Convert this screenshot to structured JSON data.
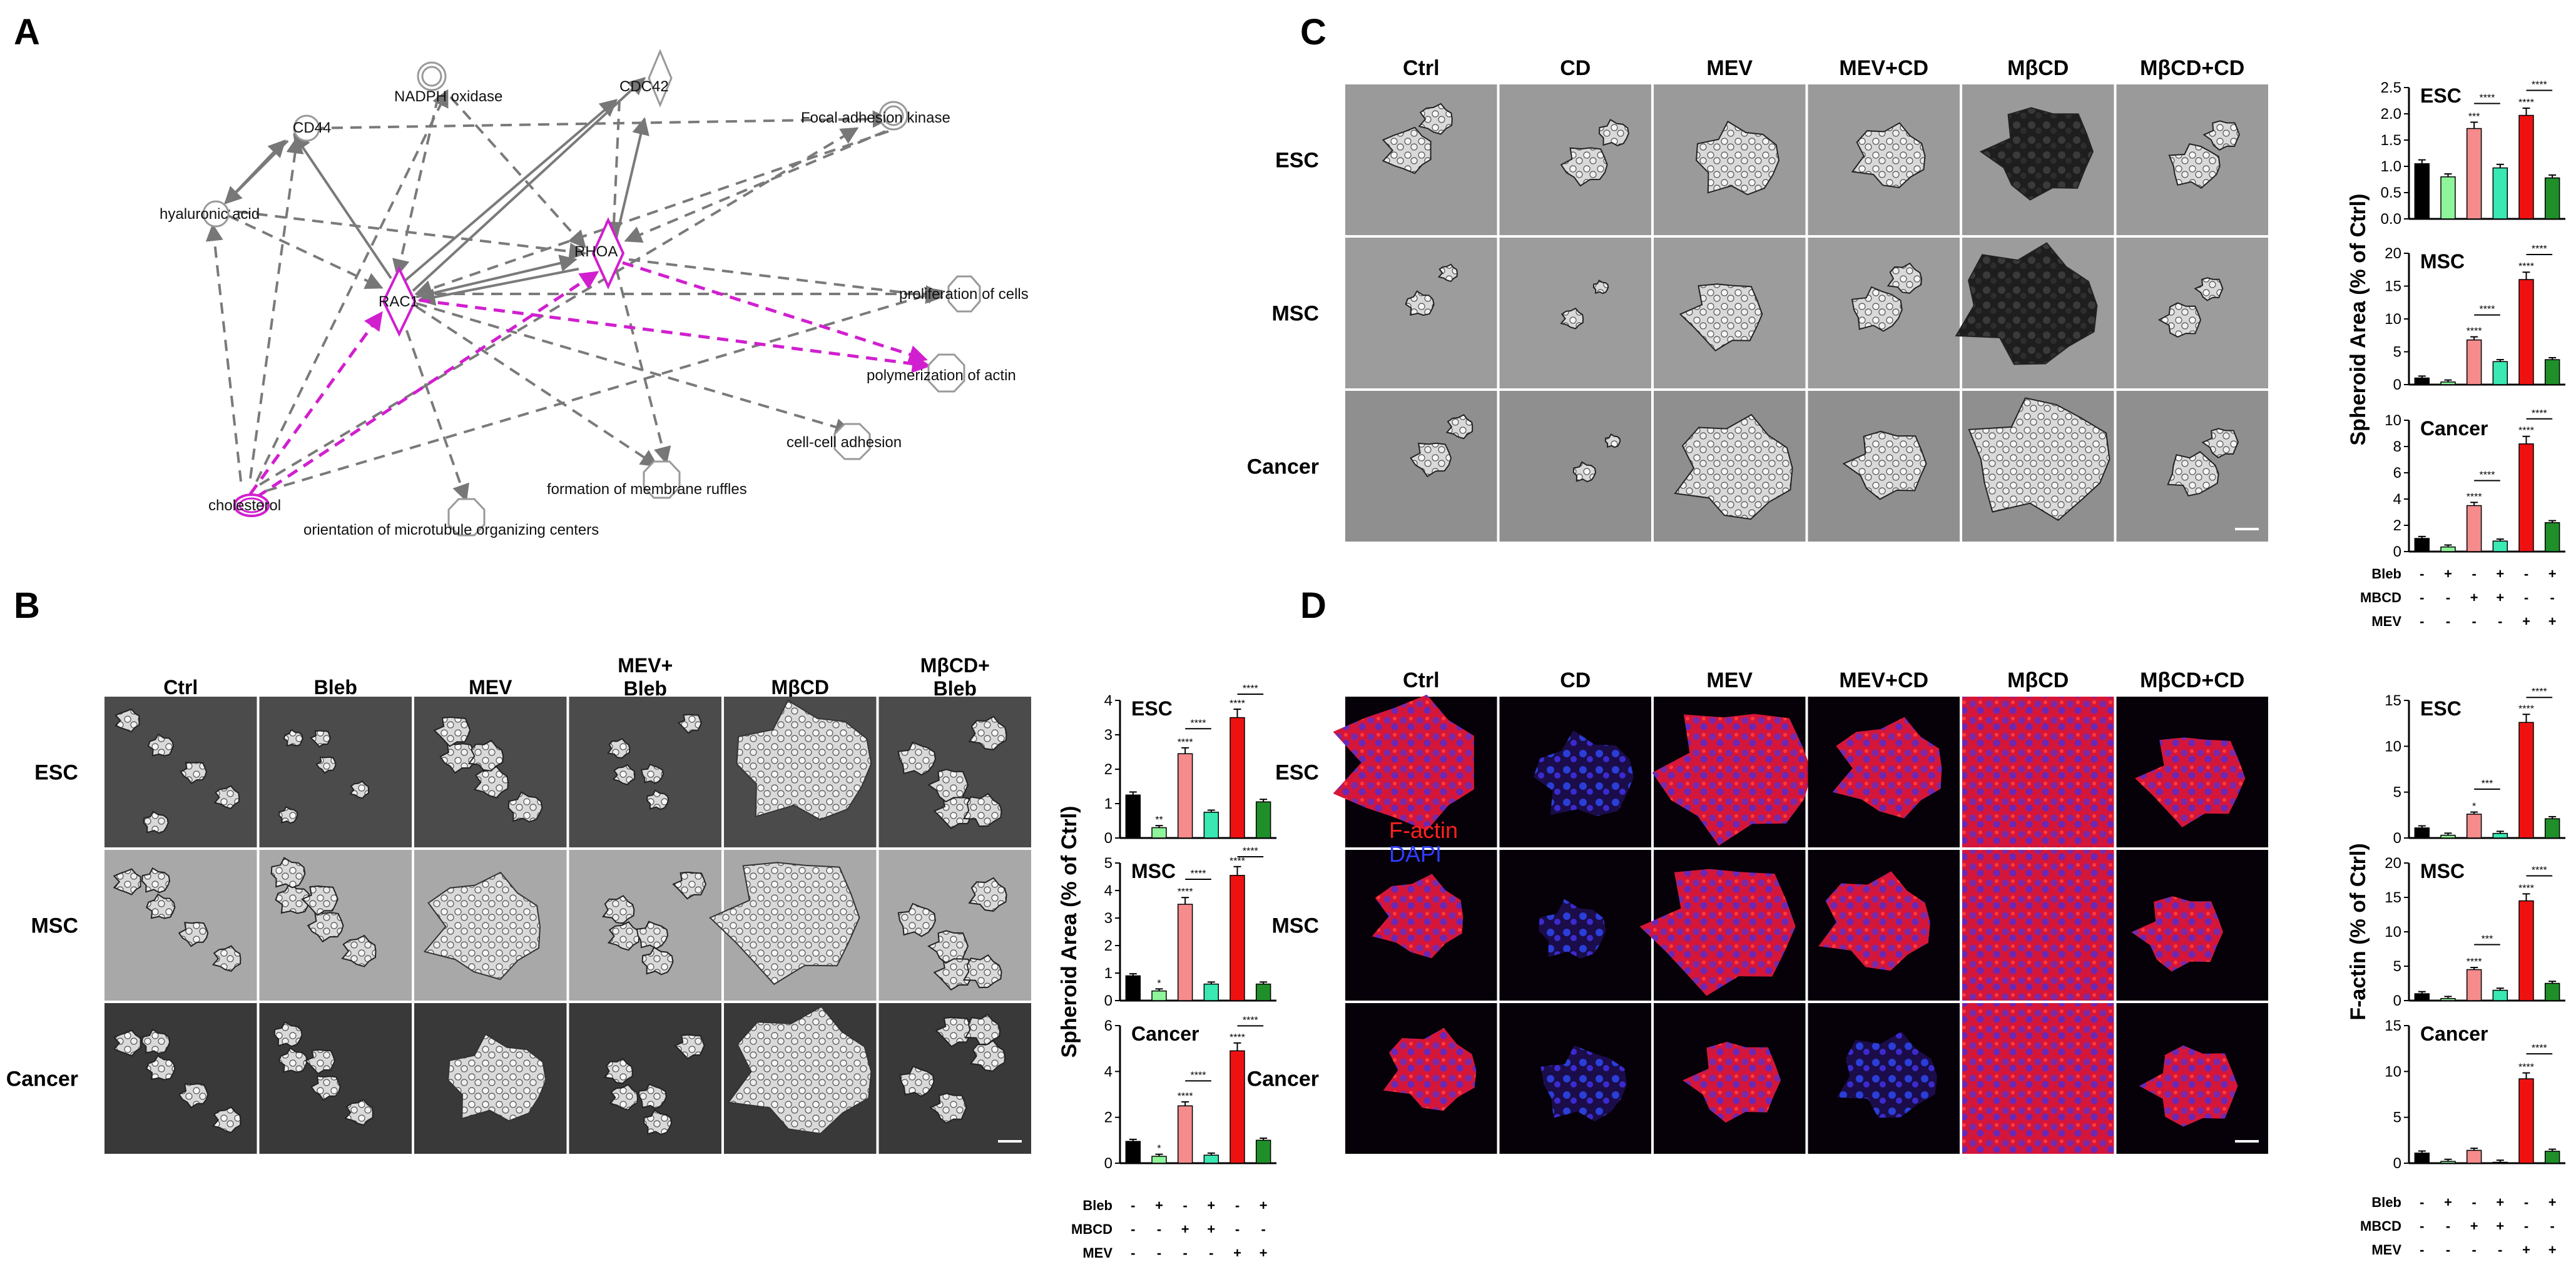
{
  "panels": {
    "A": {
      "letter": "A",
      "nodes": {
        "hyaluronic_acid": "hyaluronic acid",
        "cd44": "CD44",
        "nadph": "NADPH oxidase",
        "cdc42": "CDC42",
        "fak": "Focal adhesion kinase",
        "rac1": "RAC1",
        "rhoa": "RHOA",
        "prolif": "proliferation of cells",
        "polym": "polymerization of actin",
        "cellcell": "cell-cell adhesion",
        "ruffles": "formation of membrane ruffles",
        "mtoc": "orientation of microtubule organizing centers",
        "cholesterol": "cholesterol"
      }
    },
    "B": {
      "letter": "B",
      "columns": [
        "Ctrl",
        "Bleb",
        "MEV",
        "MEV+\nBleb",
        "MβCD",
        "MβCD+\nBleb"
      ],
      "column_lines": [
        [
          "Ctrl"
        ],
        [
          "Bleb"
        ],
        [
          "MEV"
        ],
        [
          "MEV+",
          "Bleb"
        ],
        [
          "MβCD"
        ],
        [
          "MβCD+",
          "Bleb"
        ]
      ],
      "rows": [
        "ESC",
        "MSC",
        "Cancer"
      ],
      "ylabel": "Spheroid Area (% of Ctrl)"
    },
    "C": {
      "letter": "C",
      "columns": [
        "Ctrl",
        "CD",
        "MEV",
        "MEV+CD",
        "MβCD",
        "MβCD+CD"
      ],
      "rows": [
        "ESC",
        "MSC",
        "Cancer"
      ],
      "ylabel": "Spheroid Area (% of Ctrl)"
    },
    "D": {
      "letter": "D",
      "columns": [
        "Ctrl",
        "CD",
        "MEV",
        "MEV+CD",
        "MβCD",
        "MβCD+CD"
      ],
      "rows": [
        "ESC",
        "MSC",
        "Cancer"
      ],
      "legend": [
        "F-actin",
        "DAPI"
      ],
      "ylabel": "F-actin (% of Ctrl)"
    }
  },
  "treatment_table": {
    "rows": [
      {
        "name": "Bleb",
        "marks": [
          "-",
          "+",
          "-",
          "+",
          "-",
          "+"
        ]
      },
      {
        "name": "MBCD",
        "marks": [
          "-",
          "-",
          "+",
          "+",
          "-",
          "-"
        ]
      },
      {
        "name": "MEV",
        "marks": [
          "-",
          "-",
          "-",
          "-",
          "+",
          "+"
        ]
      }
    ]
  },
  "colors": {
    "bars": [
      "#000000",
      "#8ef59a",
      "#f58b8b",
      "#39e8b2",
      "#ef1111",
      "#1f8f2a"
    ],
    "pink": "#d11fcf",
    "gray_edge": "#888888"
  },
  "chart_data": [
    {
      "type": "bar",
      "panel": "B",
      "ylabel": "Spheroid Area (% of Ctrl)",
      "subplots": [
        {
          "title": "ESC",
          "ylim": [
            0,
            4
          ],
          "yticks": [
            0,
            1,
            2,
            3,
            4
          ],
          "values": [
            1.25,
            0.3,
            2.45,
            0.75,
            3.5,
            1.05
          ],
          "stars": [
            "",
            "**",
            "****",
            "",
            "****",
            ""
          ],
          "brackets": [
            {
              "from": 2,
              "to": 3,
              "label": "****"
            },
            {
              "from": 4,
              "to": 5,
              "label": "****"
            }
          ]
        },
        {
          "title": "MSC",
          "ylim": [
            0,
            5
          ],
          "yticks": [
            0,
            1,
            2,
            3,
            4,
            5
          ],
          "values": [
            0.9,
            0.35,
            3.5,
            0.6,
            4.55,
            0.6
          ],
          "stars": [
            "",
            "*",
            "****",
            "",
            "****",
            ""
          ],
          "brackets": [
            {
              "from": 2,
              "to": 3,
              "label": "****"
            },
            {
              "from": 4,
              "to": 5,
              "label": "****"
            }
          ]
        },
        {
          "title": "Cancer",
          "ylim": [
            0,
            6
          ],
          "yticks": [
            0,
            2,
            4,
            6
          ],
          "values": [
            0.95,
            0.3,
            2.5,
            0.35,
            4.9,
            1.0
          ],
          "stars": [
            "",
            "*",
            "****",
            "",
            "****",
            ""
          ],
          "brackets": [
            {
              "from": 2,
              "to": 3,
              "label": "****"
            },
            {
              "from": 4,
              "to": 5,
              "label": "****"
            }
          ]
        }
      ]
    },
    {
      "type": "bar",
      "panel": "C",
      "ylabel": "Spheroid Area (% of Ctrl)",
      "subplots": [
        {
          "title": "ESC",
          "ylim": [
            0,
            2.5
          ],
          "yticks": [
            0.0,
            0.5,
            1.0,
            1.5,
            2.0,
            2.5
          ],
          "ytick_labels": [
            "0.0",
            "0.5",
            "1.0",
            "1.5",
            "2.0",
            "2.5"
          ],
          "values": [
            1.05,
            0.8,
            1.72,
            0.97,
            1.97,
            0.78
          ],
          "stars": [
            "",
            "",
            "***",
            "",
            "****",
            ""
          ],
          "brackets": [
            {
              "from": 2,
              "to": 3,
              "label": "****"
            },
            {
              "from": 4,
              "to": 5,
              "label": "****"
            }
          ]
        },
        {
          "title": "MSC",
          "ylim": [
            0,
            20
          ],
          "yticks": [
            0,
            5,
            10,
            15,
            20
          ],
          "values": [
            1.0,
            0.4,
            6.8,
            3.5,
            16.0,
            3.8
          ],
          "stars": [
            "",
            "",
            "****",
            "",
            "****",
            ""
          ],
          "brackets": [
            {
              "from": 2,
              "to": 3,
              "label": "****"
            },
            {
              "from": 4,
              "to": 5,
              "label": "****"
            }
          ]
        },
        {
          "title": "Cancer",
          "ylim": [
            0,
            10
          ],
          "yticks": [
            0,
            2,
            4,
            6,
            8,
            10
          ],
          "values": [
            1.0,
            0.35,
            3.5,
            0.8,
            8.2,
            2.2
          ],
          "stars": [
            "",
            "",
            "****",
            "",
            "****",
            ""
          ],
          "brackets": [
            {
              "from": 2,
              "to": 3,
              "label": "****"
            },
            {
              "from": 4,
              "to": 5,
              "label": "****"
            }
          ]
        }
      ]
    },
    {
      "type": "bar",
      "panel": "D",
      "ylabel": "F-actin (% of Ctrl)",
      "subplots": [
        {
          "title": "ESC",
          "ylim": [
            0,
            15
          ],
          "yticks": [
            0,
            5,
            10,
            15
          ],
          "values": [
            1.1,
            0.3,
            2.6,
            0.5,
            12.6,
            2.1
          ],
          "stars": [
            "",
            "",
            "*",
            "",
            "****",
            ""
          ],
          "brackets": [
            {
              "from": 2,
              "to": 3,
              "label": "***"
            },
            {
              "from": 4,
              "to": 5,
              "label": "****"
            }
          ]
        },
        {
          "title": "MSC",
          "ylim": [
            0,
            20
          ],
          "yticks": [
            0,
            5,
            10,
            15,
            20
          ],
          "values": [
            1.0,
            0.3,
            4.5,
            1.5,
            14.5,
            2.5
          ],
          "stars": [
            "",
            "",
            "****",
            "",
            "****",
            ""
          ],
          "brackets": [
            {
              "from": 2,
              "to": 3,
              "label": "***"
            },
            {
              "from": 4,
              "to": 5,
              "label": "****"
            }
          ]
        },
        {
          "title": "Cancer",
          "ylim": [
            0,
            15
          ],
          "yticks": [
            0,
            5,
            10,
            15
          ],
          "values": [
            1.1,
            0.2,
            1.4,
            0.1,
            9.2,
            1.3
          ],
          "stars": [
            "",
            "",
            "",
            "",
            "****",
            ""
          ],
          "brackets": [
            {
              "from": 4,
              "to": 5,
              "label": "****"
            }
          ]
        }
      ]
    }
  ]
}
